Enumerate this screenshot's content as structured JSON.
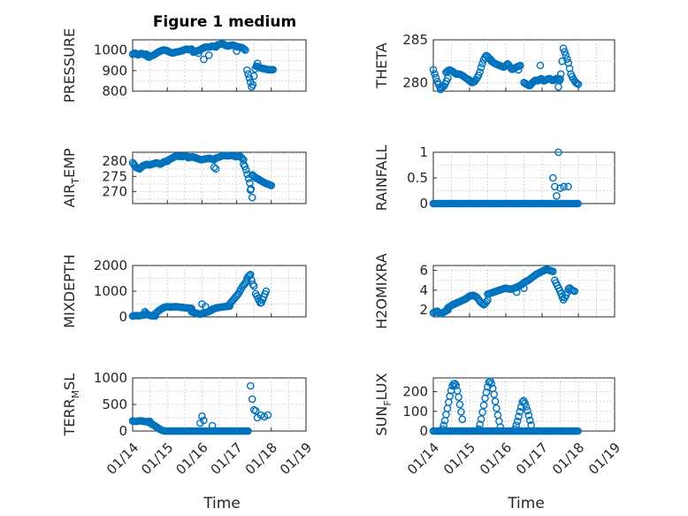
{
  "figure": {
    "title": "Figure 1 medium",
    "marker_color": "#0072BD",
    "xtick_labels": [
      "01/14",
      "01/15",
      "01/16",
      "01/17",
      "01/18",
      "01/19"
    ]
  },
  "chart_data": [
    {
      "type": "scatter",
      "ylabel_main": "PRESSURE",
      "ylabel_sub": "",
      "xlabel": "",
      "title": "Figure 1 medium",
      "xlim": [
        0,
        5
      ],
      "ylim": [
        800,
        1050
      ],
      "yticks": [
        800,
        900,
        1000
      ],
      "ytick_labels": [
        "800",
        "900",
        "1000"
      ],
      "x_unit": "days since 01/14",
      "series": [
        {
          "segments": [
            {
              "x0": 0.0,
              "x1": 0.4,
              "y": [
                980,
                985,
                975,
                985,
                978,
                980
              ]
            },
            {
              "x0": 0.4,
              "x1": 1.0,
              "y": [
                972,
                965,
                972,
                975,
                982,
                990,
                995,
                1000,
                1000,
                997
              ]
            },
            {
              "x0": 1.0,
              "x1": 1.7,
              "y": [
                995,
                990,
                985,
                990,
                992,
                995,
                1000,
                1005,
                1002,
                1005
              ]
            },
            {
              "x0": 1.75,
              "x1": 2.4,
              "y": [
                990,
                995,
                1000,
                1010,
                1015,
                1015,
                1020,
                1015
              ]
            },
            {
              "x0": 2.45,
              "x1": 3.25,
              "y": [
                1025,
                1030,
                1028,
                1020,
                1022,
                1025,
                1018,
                1015,
                1012,
                1000
              ]
            },
            {
              "x0": 3.3,
              "x1": 3.6,
              "y": [
                902,
                860,
                810,
                905,
                935
              ]
            },
            {
              "x0": 3.6,
              "x1": 4.05,
              "y": [
                920,
                912,
                908,
                904,
                905
              ]
            }
          ],
          "extra_x": [
            1.9,
            2.05,
            2.2,
            3.0
          ],
          "extra_y": [
            985,
            955,
            975,
            995
          ]
        }
      ]
    },
    {
      "type": "scatter",
      "ylabel_main": "THETA",
      "ylabel_sub": "",
      "xlim": [
        0,
        5
      ],
      "ylim": [
        279,
        285
      ],
      "yticks": [
        280,
        285
      ],
      "ytick_labels": [
        "280",
        "285"
      ],
      "series": [
        {
          "segments": [
            {
              "x0": 0.0,
              "x1": 0.4,
              "y": [
                281.5,
                280.2,
                279.3,
                279.6,
                280.5
              ]
            },
            {
              "x0": 0.35,
              "x1": 1.0,
              "y": [
                281.2,
                281.5,
                281.3,
                281.0,
                281.0,
                280.8,
                280.5,
                280.3
              ]
            },
            {
              "x0": 1.0,
              "x1": 1.6,
              "y": [
                280.2,
                280.0,
                280.1,
                280.5,
                281.0,
                282.0,
                282.8,
                283.2,
                282.9,
                282.6
              ]
            },
            {
              "x0": 1.6,
              "x1": 2.4,
              "y": [
                282.5,
                282.2,
                282.0,
                281.8,
                282.2,
                281.5,
                281.8,
                282.0
              ]
            },
            {
              "x0": 2.5,
              "x1": 3.05,
              "y": [
                280.0,
                279.8,
                279.6,
                280.0,
                280.3,
                280.2,
                280.5,
                280.2
              ]
            },
            {
              "x0": 3.1,
              "x1": 3.5,
              "y": [
                280.3,
                280.5,
                280.2,
                280.5,
                280.4
              ]
            },
            {
              "x0": 3.45,
              "x1": 4.0,
              "y": [
                279.5,
                281.0,
                284.0,
                283.2,
                282.3,
                281.0,
                280.4,
                280.0,
                279.8
              ]
            }
          ],
          "extra_x": [
            0.2,
            2.95,
            2.35
          ],
          "extra_y": [
            279.2,
            282.0,
            281.5
          ]
        }
      ]
    },
    {
      "type": "scatter",
      "ylabel_main": "AIR",
      "ylabel_sub": "T",
      "ylabel_tail": "EMP",
      "xlim": [
        0,
        5
      ],
      "ylim": [
        266,
        283
      ],
      "yticks": [
        270,
        275,
        280
      ],
      "ytick_labels": [
        "270",
        "275",
        "280"
      ],
      "series": [
        {
          "segments": [
            {
              "x0": 0.0,
              "x1": 0.3,
              "y": [
                279.5,
                278.0,
                277.5,
                278.5
              ]
            },
            {
              "x0": 0.3,
              "x1": 1.0,
              "y": [
                278.5,
                279.0,
                278.8,
                279.2,
                279.5,
                279.0,
                279.8,
                280.0
              ]
            },
            {
              "x0": 1.0,
              "x1": 1.6,
              "y": [
                280.2,
                280.8,
                281.5,
                281.8,
                281.5,
                281.8,
                281.5
              ]
            },
            {
              "x0": 1.6,
              "x1": 2.35,
              "y": [
                281.2,
                281.5,
                281.0,
                280.5,
                280.8,
                281.0,
                280.5
              ]
            },
            {
              "x0": 2.4,
              "x1": 3.2,
              "y": [
                281.0,
                281.5,
                282.0,
                281.8,
                282.0,
                281.5,
                281.8,
                280.5
              ]
            },
            {
              "x0": 3.2,
              "x1": 3.45,
              "y": [
                279.0,
                278.0,
                276.0,
                274.0,
                272.0,
                268.0
              ]
            },
            {
              "x0": 3.45,
              "x1": 4.0,
              "y": [
                275.5,
                274.5,
                273.8,
                273.0,
                272.5,
                272.0
              ]
            }
          ],
          "extra_x": [
            2.35,
            2.4,
            3.4
          ],
          "extra_y": [
            278.0,
            277.5,
            270.5
          ]
        }
      ]
    },
    {
      "type": "scatter",
      "ylabel_main": "RAINFALL",
      "ylabel_sub": "",
      "xlim": [
        0,
        5
      ],
      "ylim": [
        0,
        1
      ],
      "yticks": [
        0,
        0.5,
        1
      ],
      "ytick_labels": [
        "0",
        "0.5",
        "1"
      ],
      "series": [
        {
          "segments": [
            {
              "x0": 0.0,
              "x1": 3.2,
              "y": [
                0
              ]
            }
          ],
          "zero_run": [
            0.0,
            4.0
          ],
          "extra_x": [
            3.3,
            3.35,
            3.4,
            3.45,
            3.5,
            3.6,
            3.72
          ],
          "extra_y": [
            0.5,
            0.33,
            0.15,
            1.0,
            0.3,
            0.33,
            0.33
          ]
        }
      ]
    },
    {
      "type": "scatter",
      "ylabel_main": "MIXDEPTH",
      "ylabel_sub": "",
      "xlim": [
        0,
        5
      ],
      "ylim": [
        0,
        2000
      ],
      "yticks": [
        0,
        1000,
        2000
      ],
      "ytick_labels": [
        "0",
        "1000",
        "2000"
      ],
      "series": [
        {
          "segments": [
            {
              "x0": 0.0,
              "x1": 0.35,
              "y": [
                30,
                50,
                40,
                60,
                80
              ]
            },
            {
              "x0": 0.35,
              "x1": 0.65,
              "y": [
                200,
                100,
                50,
                40,
                30
              ]
            },
            {
              "x0": 0.65,
              "x1": 1.1,
              "y": [
                120,
                250,
                350,
                400,
                380
              ]
            },
            {
              "x0": 1.1,
              "x1": 1.7,
              "y": [
                380,
                400,
                370,
                350,
                330
              ]
            },
            {
              "x0": 1.7,
              "x1": 2.3,
              "y": [
                200,
                150,
                100,
                150,
                200,
                280
              ]
            },
            {
              "x0": 2.3,
              "x1": 2.8,
              "y": [
                300,
                350,
                380,
                400,
                420
              ]
            },
            {
              "x0": 2.8,
              "x1": 3.3,
              "y": [
                500,
                700,
                900,
                1200,
                1400
              ]
            },
            {
              "x0": 3.3,
              "x1": 3.5,
              "y": [
                1500,
                1600,
                1650,
                1300,
                1200
              ]
            },
            {
              "x0": 3.55,
              "x1": 3.85,
              "y": [
                900,
                700,
                500,
                750,
                1000
              ]
            }
          ],
          "extra_x": [
            2.0,
            2.1
          ],
          "extra_y": [
            500,
            400
          ]
        }
      ]
    },
    {
      "type": "scatter",
      "ylabel_main": "H2OMIXRA",
      "ylabel_sub": "",
      "xlim": [
        0,
        5
      ],
      "ylim": [
        1.3,
        6.5
      ],
      "yticks": [
        2,
        4,
        6
      ],
      "ytick_labels": [
        "2",
        "4",
        "6"
      ],
      "series": [
        {
          "segments": [
            {
              "x0": 0.0,
              "x1": 0.4,
              "y": [
                1.7,
                1.9,
                1.6,
                1.8,
                2.0
              ]
            },
            {
              "x0": 0.4,
              "x1": 1.0,
              "y": [
                2.2,
                2.5,
                2.7,
                2.9,
                3.1,
                3.4
              ]
            },
            {
              "x0": 1.0,
              "x1": 1.5,
              "y": [
                3.4,
                3.5,
                3.3,
                2.8,
                2.5,
                3.0
              ]
            },
            {
              "x0": 1.5,
              "x1": 2.3,
              "y": [
                3.6,
                3.8,
                4.0,
                4.2,
                4.1,
                4.3
              ]
            },
            {
              "x0": 2.3,
              "x1": 3.05,
              "y": [
                4.3,
                4.5,
                4.8,
                5.0,
                5.3,
                5.6,
                5.8,
                6.0
              ]
            },
            {
              "x0": 3.05,
              "x1": 3.3,
              "y": [
                6.0,
                6.1,
                6.0,
                5.9
              ]
            },
            {
              "x0": 3.35,
              "x1": 3.9,
              "y": [
                5.0,
                4.4,
                3.8,
                3.0,
                3.5,
                4.3,
                4.0,
                3.9
              ]
            }
          ],
          "extra_x": [
            2.3,
            2.5
          ],
          "extra_y": [
            3.8,
            4.2
          ]
        }
      ]
    },
    {
      "type": "scatter",
      "ylabel_main": "TERR",
      "ylabel_sub": "M",
      "ylabel_tail": "SL",
      "xlim": [
        0,
        5
      ],
      "ylim": [
        0,
        1000
      ],
      "yticks": [
        0,
        500,
        1000
      ],
      "ytick_labels": [
        "0",
        "500",
        "1000"
      ],
      "series": [
        {
          "segments": [
            {
              "x0": 0.0,
              "x1": 0.5,
              "y": [
                190,
                180,
                195,
                185,
                175,
                180
              ]
            },
            {
              "x0": 0.5,
              "x1": 0.95,
              "y": [
                150,
                120,
                80,
                40,
                10,
                0
              ]
            }
          ],
          "zero_run": [
            0.95,
            3.35
          ],
          "extra_x": [
            1.95,
            2.0,
            2.05,
            2.1,
            2.3,
            3.4,
            3.45,
            3.5,
            3.55,
            3.6,
            3.7,
            3.8,
            3.9
          ],
          "extra_y": [
            150,
            280,
            200,
            0,
            100,
            850,
            600,
            400,
            380,
            250,
            300,
            270,
            300
          ]
        }
      ]
    },
    {
      "type": "scatter",
      "ylabel_main": "SUN",
      "ylabel_sub": "F",
      "ylabel_tail": "LUX",
      "xlim": [
        0,
        5
      ],
      "ylim": [
        0,
        270
      ],
      "yticks": [
        0,
        100,
        200
      ],
      "ytick_labels": [
        "0",
        "100",
        "200"
      ],
      "series": [
        {
          "segments": [
            {
              "x0": 0.25,
              "x1": 0.8,
              "y": [
                10,
                40,
                90,
                140,
                190,
                230,
                245,
                230,
                180,
                120,
                60
              ]
            },
            {
              "x0": 1.25,
              "x1": 1.85,
              "y": [
                10,
                50,
                110,
                170,
                220,
                260,
                240,
                190,
                130,
                70,
                20
              ]
            },
            {
              "x0": 2.25,
              "x1": 2.7,
              "y": [
                10,
                40,
                80,
                120,
                160,
                140,
                110,
                70,
                30
              ]
            }
          ],
          "zero_run": [
            0.0,
            4.0
          ],
          "extra_x": [],
          "extra_y": []
        }
      ]
    }
  ]
}
